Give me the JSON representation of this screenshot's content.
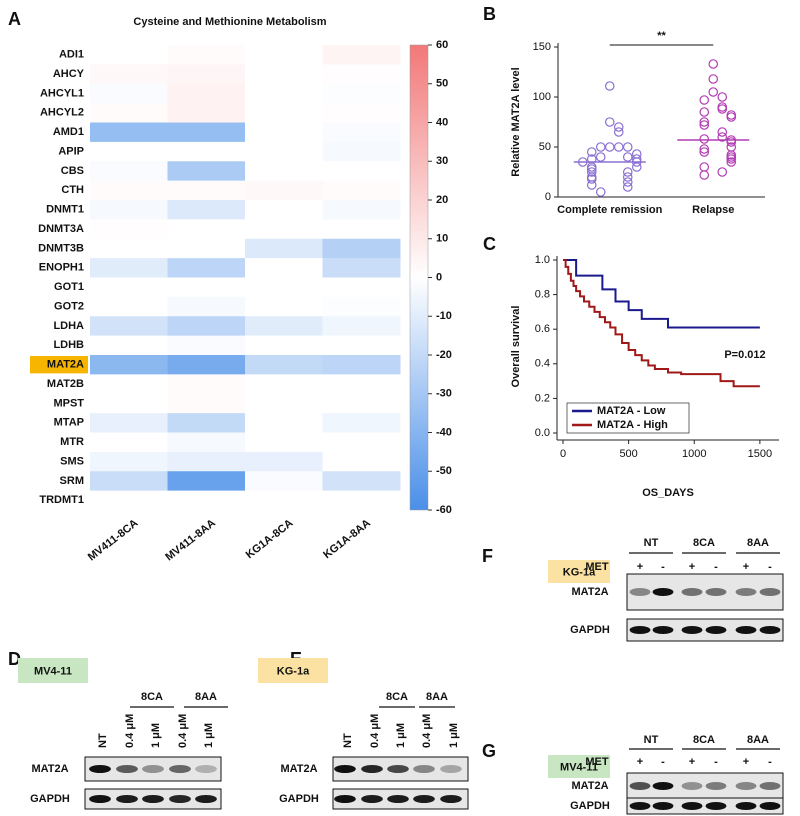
{
  "chart_data": [
    {
      "type": "heatmap",
      "panel": "A",
      "title": "Cysteine and Methionine Metabolism",
      "rows": [
        "ADI1",
        "AHCY",
        "AHCYL1",
        "AHCYL2",
        "AMD1",
        "APIP",
        "CBS",
        "CTH",
        "DNMT1",
        "DNMT3A",
        "DNMT3B",
        "ENOPH1",
        "GOT1",
        "GOT2",
        "LDHA",
        "LDHB",
        "MAT2A",
        "MAT2B",
        "MPST",
        "MTAP",
        "MTR",
        "SMS",
        "SRM",
        "TRDMT1"
      ],
      "columns": [
        "MV411-8CA",
        "MV411-8AA",
        "KG1A-8CA",
        "KG1A-8AA"
      ],
      "values": [
        [
          0,
          2,
          0,
          5
        ],
        [
          3,
          4,
          0,
          1
        ],
        [
          -2,
          6,
          0,
          -1
        ],
        [
          2,
          6,
          0,
          1
        ],
        [
          -35,
          -35,
          0,
          -2
        ],
        [
          0,
          0,
          0,
          -3
        ],
        [
          -2,
          -28,
          0,
          0
        ],
        [
          2,
          2,
          3,
          2
        ],
        [
          -3,
          -12,
          0,
          -3
        ],
        [
          1,
          0,
          0,
          0
        ],
        [
          0,
          0,
          -12,
          -25
        ],
        [
          -10,
          -22,
          0,
          -18
        ],
        [
          0,
          0,
          0,
          0
        ],
        [
          0,
          -3,
          0,
          -1
        ],
        [
          -15,
          -22,
          -10,
          -5
        ],
        [
          0,
          -2,
          0,
          0
        ],
        [
          -38,
          -45,
          -20,
          -22
        ],
        [
          0,
          2,
          0,
          0
        ],
        [
          0,
          2,
          0,
          0
        ],
        [
          -8,
          -20,
          0,
          -5
        ],
        [
          0,
          -3,
          0,
          0
        ],
        [
          -5,
          -8,
          -8,
          0
        ],
        [
          -18,
          -50,
          -2,
          -15
        ],
        [
          0,
          0,
          0,
          0
        ]
      ],
      "zlim": [
        -60,
        60
      ],
      "zticks": [
        -60,
        -50,
        -40,
        -30,
        -20,
        -10,
        0,
        10,
        20,
        30,
        40,
        50,
        60
      ],
      "colors": [
        "#4a8fe8",
        "#ffffff",
        "#f27878"
      ],
      "highlight_row": 16,
      "highlight_color": "#f7b500"
    },
    {
      "type": "dot",
      "panel": "B",
      "ylabel": "Relative MAT2A level",
      "categories": [
        "Complete remission",
        "Relapse"
      ],
      "values": [
        [
          111,
          75,
          70,
          65,
          50,
          50,
          50,
          50,
          45,
          43,
          40,
          40,
          38,
          38,
          35,
          35,
          30,
          30,
          28,
          25,
          25,
          20,
          20,
          18,
          15,
          12,
          10,
          5
        ],
        [
          133,
          118,
          105,
          100,
          97,
          90,
          88,
          85,
          82,
          80,
          75,
          72,
          65,
          60,
          58,
          57,
          55,
          50,
          48,
          45,
          42,
          40,
          38,
          35,
          30,
          25,
          22
        ]
      ],
      "medians": [
        35,
        57
      ],
      "colors": [
        "#8a70d2",
        "#b23cb4"
      ],
      "ylim": [
        0,
        150
      ],
      "yticks": [
        0,
        50,
        100,
        150
      ],
      "annotation": "**"
    },
    {
      "type": "step",
      "panel": "C",
      "xlabel": "OS_DAYS",
      "ylabel": "Overall survival",
      "xlim": [
        0,
        1600
      ],
      "xticks": [
        0,
        500,
        1000,
        1500
      ],
      "ylim": [
        0,
        1
      ],
      "yticks": [
        {
          "value": 0,
          "label": "0.0"
        },
        {
          "value": 0.2,
          "label": "0.2"
        },
        {
          "value": 0.4,
          "label": "0.4"
        },
        {
          "value": 0.6,
          "label": "0.6"
        },
        {
          "value": 0.8,
          "label": "0.8"
        },
        {
          "value": 1,
          "label": "1.0"
        }
      ],
      "annotation": "P=0.012",
      "legend": "lower-left",
      "series": [
        {
          "name": "MAT2A - Low",
          "color": "#1a1a8c",
          "x": [
            0,
            100,
            300,
            400,
            500,
            600,
            800,
            1500
          ],
          "values": [
            1,
            0.91,
            0.83,
            0.76,
            0.71,
            0.66,
            0.61,
            0.61
          ]
        },
        {
          "name": "MAT2A - High",
          "color": "#a01818",
          "x": [
            0,
            20,
            40,
            60,
            80,
            100,
            130,
            160,
            200,
            240,
            280,
            320,
            360,
            400,
            450,
            500,
            550,
            600,
            650,
            700,
            800,
            900,
            1000,
            1200,
            1300,
            1500
          ],
          "values": [
            1,
            0.96,
            0.92,
            0.88,
            0.85,
            0.82,
            0.79,
            0.76,
            0.73,
            0.7,
            0.67,
            0.64,
            0.61,
            0.57,
            0.52,
            0.48,
            0.45,
            0.42,
            0.39,
            0.37,
            0.35,
            0.34,
            0.34,
            0.3,
            0.27,
            0.27
          ]
        }
      ]
    }
  ],
  "blots": [
    {
      "panel": "D",
      "cell_line": "MV4-11",
      "groups": [
        "8CA",
        "8AA"
      ],
      "lanes": [
        "NT",
        "0.4 μM",
        "1 μM",
        "0.4 μM",
        "1 μM"
      ],
      "rows": [
        "MAT2A",
        "GAPDH"
      ]
    },
    {
      "panel": "E",
      "cell_line": "KG-1a",
      "groups": [
        "8CA",
        "8AA"
      ],
      "lanes": [
        "NT",
        "0.4 μM",
        "1 μM",
        "0.4 μM",
        "1 μM"
      ],
      "rows": [
        "MAT2A",
        "GAPDH"
      ]
    },
    {
      "panel": "F",
      "cell_line": "KG-1a",
      "groups": [
        "NT",
        "8CA",
        "8AA"
      ],
      "treatment": "MET",
      "signs": [
        "+",
        "-",
        "+",
        "-",
        "+",
        "-"
      ],
      "rows": [
        "MAT2A",
        "GAPDH"
      ]
    },
    {
      "panel": "G",
      "cell_line": "MV4-11",
      "groups": [
        "NT",
        "8CA",
        "8AA"
      ],
      "treatment": "MET",
      "signs": [
        "+",
        "-",
        "+",
        "-",
        "+",
        "-"
      ],
      "rows": [
        "MAT2A",
        "GAPDH"
      ]
    }
  ]
}
